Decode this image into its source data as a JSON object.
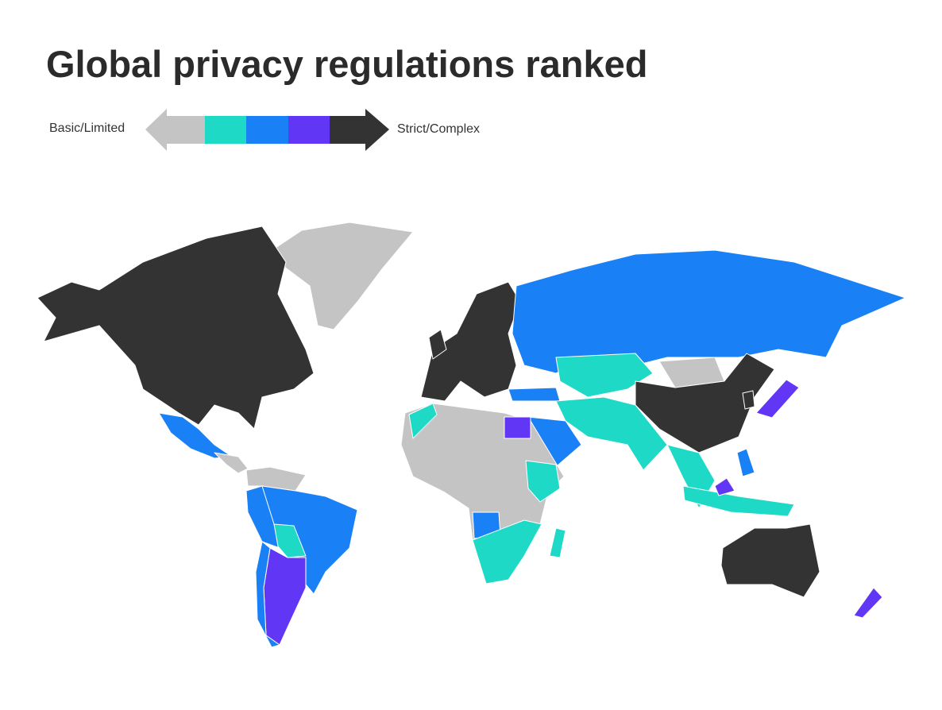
{
  "title": "Global privacy regulations ranked",
  "legend": {
    "low_label": "Basic/Limited",
    "high_label": "Strict/Complex",
    "colors": [
      "#c4c4c4",
      "#1dd9c6",
      "#1a80f5",
      "#6236f5",
      "#333333"
    ]
  }
}
